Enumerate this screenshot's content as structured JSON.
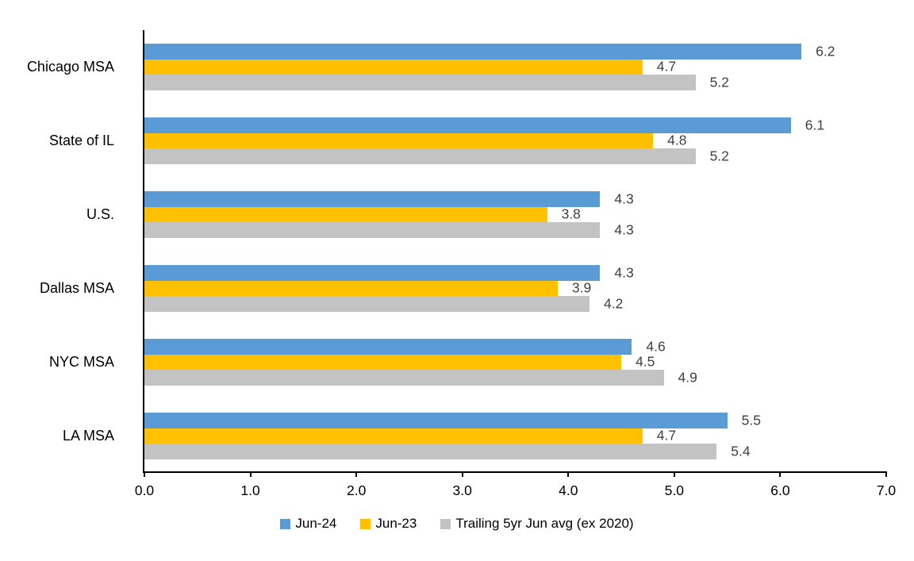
{
  "chart_data": {
    "type": "bar",
    "orientation": "horizontal",
    "title": "",
    "categories": [
      "Chicago MSA",
      "State of IL",
      "U.S.",
      "Dallas MSA",
      "NYC MSA",
      "LA MSA"
    ],
    "series": [
      {
        "name": "Jun-24",
        "color": "#5B9BD5",
        "values": [
          6.2,
          6.1,
          4.3,
          4.3,
          4.6,
          5.5
        ]
      },
      {
        "name": "Jun-23",
        "color": "#FFC000",
        "values": [
          4.7,
          4.8,
          3.8,
          3.9,
          4.5,
          4.7
        ]
      },
      {
        "name": "Trailing 5yr Jun avg (ex 2020)",
        "color": "#C3C3C3",
        "values": [
          5.2,
          5.2,
          4.3,
          4.2,
          4.9,
          5.4
        ]
      }
    ],
    "xlabel": "",
    "ylabel": "",
    "xlim": [
      0,
      7
    ],
    "x_tick_labels": [
      "0.0",
      "1.0",
      "2.0",
      "3.0",
      "4.0",
      "5.0",
      "6.0",
      "7.0"
    ],
    "grid": false,
    "legend_position": "bottom",
    "value_labels_shown": true
  },
  "colors": {
    "background": "#FFFFFF",
    "axis_line": "#000000",
    "value_label": "#404040",
    "text": "#000000"
  }
}
